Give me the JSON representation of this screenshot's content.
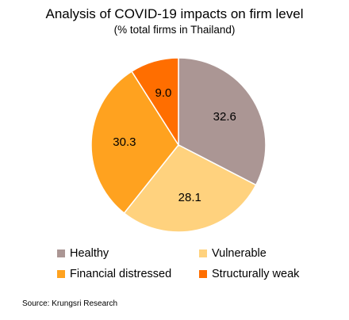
{
  "chart_data": {
    "type": "pie",
    "title": "Analysis of COVID-19 impacts on firm level",
    "subtitle": "(% total firms in Thailand)",
    "categories": [
      "Healthy",
      "Vulnerable",
      "Financial distressed",
      "Structurally weak"
    ],
    "values": [
      32.6,
      28.1,
      30.3,
      9.0
    ],
    "value_labels": [
      "32.6",
      "28.1",
      "30.3",
      "9.0"
    ],
    "colors": [
      "#AB9694",
      "#FFD27E",
      "#FFA21F",
      "#FF6E00"
    ],
    "legend_position": "bottom",
    "start_angle": "12 o'clock",
    "direction": "clockwise"
  },
  "legend": {
    "items": [
      {
        "label": "Healthy",
        "color": "#AB9694"
      },
      {
        "label": "Vulnerable",
        "color": "#FFD27E"
      },
      {
        "label": "Financial distressed",
        "color": "#FFA21F"
      },
      {
        "label": "Structurally weak",
        "color": "#FF6E00"
      }
    ]
  },
  "source": "Source: Krungsri Research"
}
